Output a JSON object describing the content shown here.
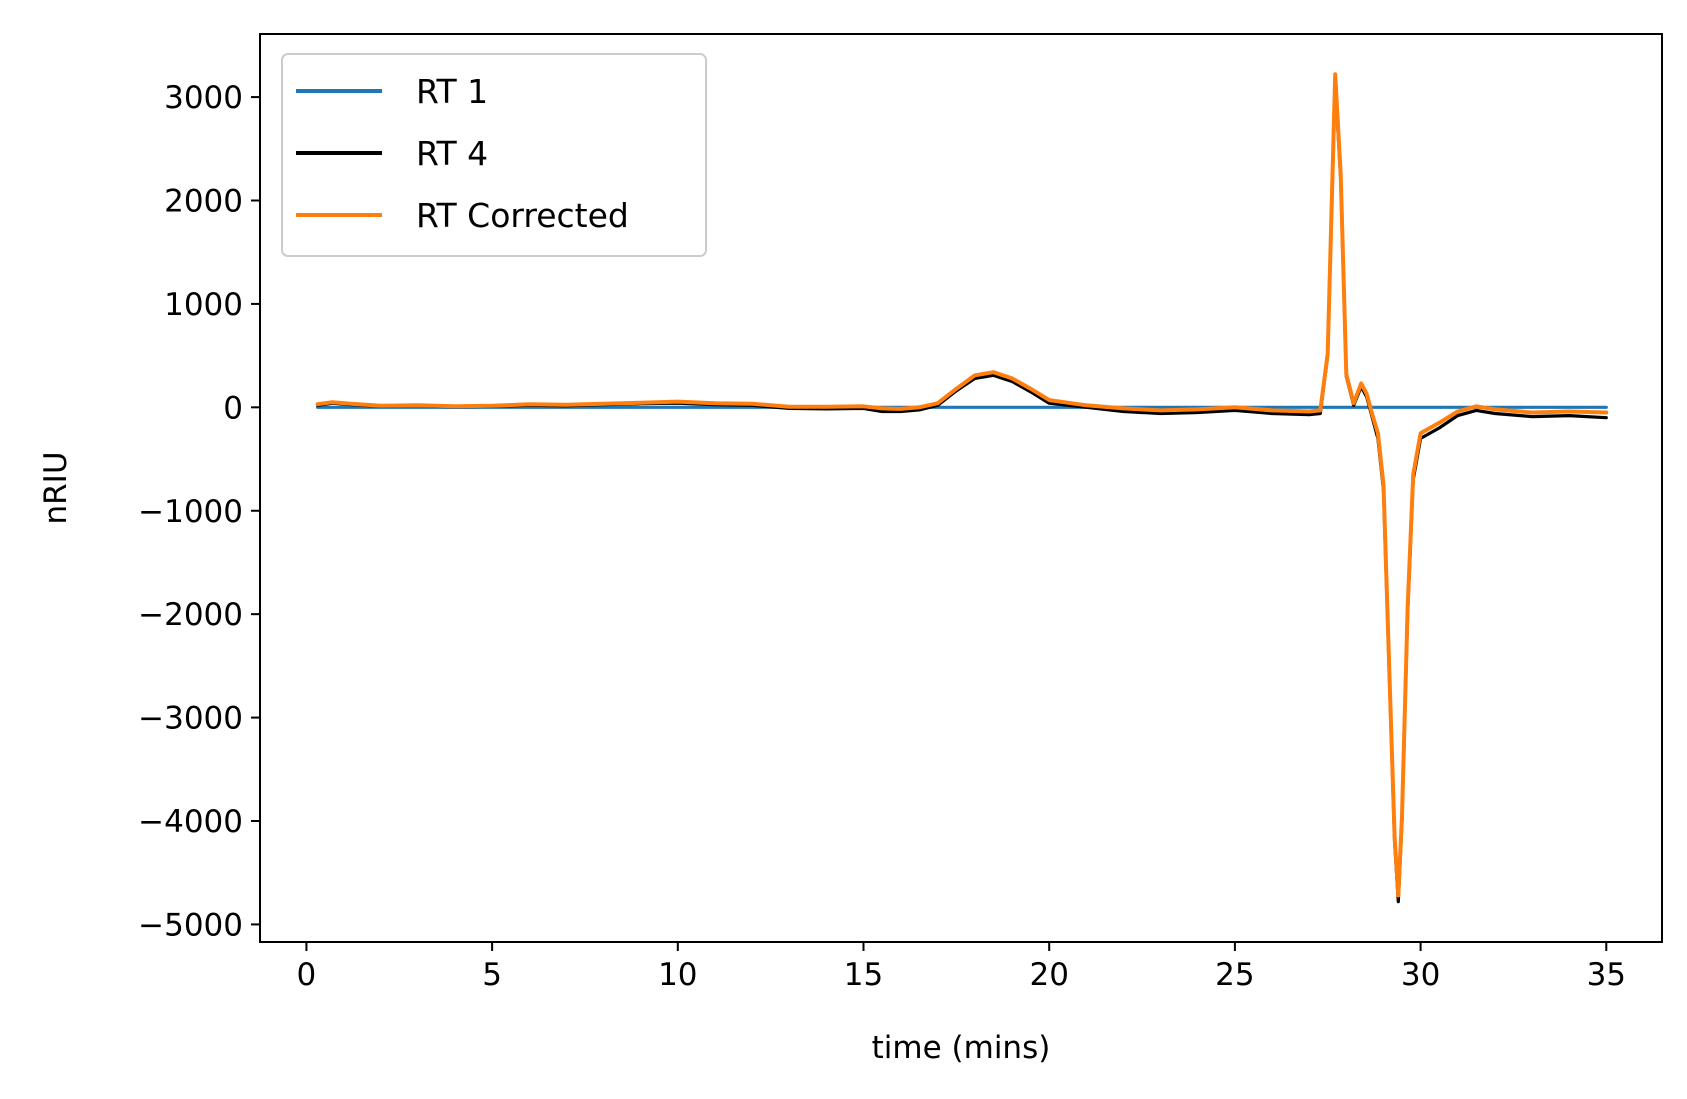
{
  "chart_data": {
    "type": "line",
    "title": "",
    "xlabel": "time (mins)",
    "ylabel": "nRIU",
    "xlim": [
      -1.25,
      36.5
    ],
    "ylim": [
      -5170,
      3610
    ],
    "xticks": [
      0,
      5,
      10,
      15,
      20,
      25,
      30,
      35
    ],
    "xtick_labels": [
      "0",
      "5",
      "10",
      "15",
      "20",
      "25",
      "30",
      "35"
    ],
    "yticks": [
      3000,
      2000,
      1000,
      0,
      -1000,
      -2000,
      -3000,
      -4000,
      -5000
    ],
    "ytick_labels": [
      "3000",
      "2000",
      "1000",
      "0",
      "−1000",
      "−2000",
      "−3000",
      "−4000",
      "−5000"
    ],
    "grid": false,
    "legend_position": "upper-left",
    "series": [
      {
        "name": "RT 1",
        "color": "#1f77b4",
        "x": [
          0.3,
          35.0
        ],
        "y": [
          0,
          0
        ]
      },
      {
        "name": "RT 4",
        "color": "#000000",
        "x": [
          0.3,
          0.7,
          1.2,
          2,
          3,
          4,
          5,
          6,
          7,
          8,
          9,
          10,
          11,
          12,
          13,
          14,
          15,
          15.5,
          16,
          16.5,
          17,
          17.5,
          18,
          18.5,
          19,
          19.5,
          20,
          20.5,
          21,
          22,
          23,
          24,
          25,
          26,
          27,
          27.3,
          27.5,
          27.7,
          27.85,
          28,
          28.2,
          28.4,
          28.55,
          28.7,
          28.85,
          29,
          29.15,
          29.3,
          29.4,
          29.5,
          29.65,
          29.8,
          30,
          30.5,
          31,
          31.5,
          32,
          33,
          34,
          35
        ],
        "y": [
          20,
          40,
          25,
          10,
          15,
          5,
          10,
          20,
          15,
          25,
          35,
          40,
          25,
          20,
          -10,
          -15,
          -10,
          -40,
          -40,
          -25,
          20,
          160,
          280,
          310,
          250,
          150,
          40,
          20,
          0,
          -40,
          -60,
          -50,
          -30,
          -60,
          -70,
          -60,
          500,
          3150,
          2200,
          300,
          20,
          200,
          100,
          -100,
          -300,
          -800,
          -2500,
          -4200,
          -4780,
          -4000,
          -2000,
          -700,
          -300,
          -200,
          -80,
          -30,
          -60,
          -90,
          -80,
          -100
        ]
      },
      {
        "name": "RT Corrected",
        "color": "#ff7f0e",
        "x": [
          0.3,
          0.7,
          1.2,
          2,
          3,
          4,
          5,
          6,
          7,
          8,
          9,
          10,
          11,
          12,
          13,
          14,
          15,
          15.5,
          16,
          16.5,
          17,
          17.5,
          18,
          18.5,
          19,
          19.5,
          20,
          20.5,
          21,
          22,
          23,
          24,
          25,
          26,
          27,
          27.3,
          27.5,
          27.7,
          27.85,
          28,
          28.2,
          28.4,
          28.55,
          28.7,
          28.85,
          29,
          29.15,
          29.3,
          29.4,
          29.5,
          29.65,
          29.8,
          30,
          30.5,
          31,
          31.5,
          32,
          33,
          34,
          35
        ],
        "y": [
          30,
          50,
          35,
          15,
          20,
          10,
          15,
          30,
          25,
          35,
          45,
          55,
          40,
          35,
          5,
          5,
          10,
          -10,
          -15,
          0,
          40,
          180,
          310,
          340,
          280,
          180,
          70,
          45,
          20,
          -10,
          -30,
          -20,
          0,
          -30,
          -40,
          -30,
          520,
          3220,
          2250,
          320,
          40,
          230,
          130,
          -70,
          -250,
          -750,
          -2450,
          -4150,
          -4720,
          -3950,
          -1950,
          -650,
          -250,
          -150,
          -40,
          10,
          -20,
          -50,
          -40,
          -50
        ]
      }
    ]
  }
}
